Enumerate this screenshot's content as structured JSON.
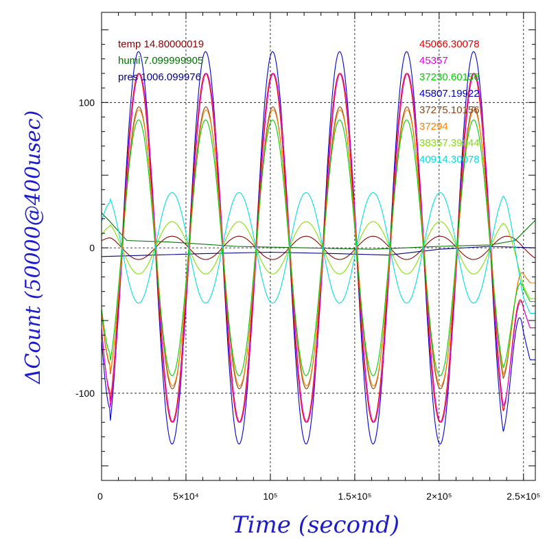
{
  "chart_data": {
    "type": "line",
    "title": "",
    "xlabel": "Time (second)",
    "ylabel": "ΔCount (50000@400usec)",
    "xlim": [
      0,
      257000
    ],
    "ylim": [
      -160,
      162
    ],
    "grid": true,
    "x_ticks": [
      {
        "value": 0,
        "label": "0"
      },
      {
        "value": 50000,
        "label": "5×10⁴"
      },
      {
        "value": 100000,
        "label": "10⁵"
      },
      {
        "value": 150000,
        "label": "1.5×10⁵"
      },
      {
        "value": 200000,
        "label": "2×10⁵"
      },
      {
        "value": 250000,
        "label": "2.5×10⁵"
      }
    ],
    "y_ticks": [
      {
        "value": -100,
        "label": "-100"
      },
      {
        "value": 0,
        "label": "0"
      },
      {
        "value": 100,
        "label": "100"
      }
    ],
    "legend_left": [
      {
        "text": "temp 14.80000019",
        "color": "#8b0000"
      },
      {
        "text": "humi 7.099999905",
        "color": "#007000"
      },
      {
        "text": "pres 1006.099976",
        "color": "#000080"
      }
    ],
    "legend_right": [
      {
        "text": "45066.30078",
        "color": "#e00000"
      },
      {
        "text": "45357",
        "color": "#e000e0"
      },
      {
        "text": "37230.60156",
        "color": "#00cc00"
      },
      {
        "text": "45807.19922",
        "color": "#0000cc"
      },
      {
        "text": "37275.10156",
        "color": "#8b4513"
      },
      {
        "text": "37294",
        "color": "#ff8000"
      },
      {
        "text": "38357.39844",
        "color": "#80e000"
      },
      {
        "text": "40914.30078",
        "color": "#00dddd"
      }
    ],
    "period": 39700,
    "series": [
      {
        "id": "blue",
        "color": "#0000cc",
        "amplitude": 135,
        "phase_x": 12000,
        "offset": 0,
        "x": [
          0,
          257000
        ],
        "tail": {
          "x": [
            238000,
            257000
          ],
          "y": [
            0,
            -77
          ]
        }
      },
      {
        "id": "red",
        "color": "#e00000",
        "amplitude": 120,
        "phase_x": 12000,
        "offset": 0,
        "x": [
          0,
          257000
        ],
        "tail": {
          "x": [
            238000,
            257000
          ],
          "y": [
            0,
            -55
          ]
        }
      },
      {
        "id": "magenta",
        "color": "#e000e0",
        "amplitude": 120,
        "phase_x": 12500,
        "offset": 0,
        "x": [
          0,
          257000
        ],
        "tail": {
          "x": [
            238000,
            257000
          ],
          "y": [
            0,
            -55
          ]
        }
      },
      {
        "id": "brown",
        "color": "#8b4513",
        "amplitude": 97,
        "phase_x": 12200,
        "offset": 0,
        "x": [
          0,
          257000
        ],
        "tail": {
          "x": [
            238000,
            257000
          ],
          "y": [
            0,
            -24
          ]
        }
      },
      {
        "id": "orange",
        "color": "#ff8000",
        "amplitude": 95,
        "phase_x": 12300,
        "offset": 0,
        "x": [
          0,
          257000
        ],
        "tail": {
          "x": [
            238000,
            257000
          ],
          "y": [
            0,
            -24
          ]
        }
      },
      {
        "id": "green",
        "color": "#00cc00",
        "amplitude": 88,
        "phase_x": 12000,
        "offset": 0,
        "x": [
          0,
          257000
        ],
        "tail": {
          "x": [
            238000,
            257000
          ],
          "y": [
            0,
            -37
          ]
        }
      },
      {
        "id": "lightgreen",
        "color": "#80e000",
        "amplitude": -18,
        "phase_x": 12000,
        "offset": 0,
        "x": [
          0,
          257000
        ],
        "tail": {
          "x": [
            238000,
            257000
          ],
          "y": [
            0,
            -35
          ]
        }
      },
      {
        "id": "cyan",
        "color": "#00dddd",
        "amplitude": -38,
        "phase_x": 12000,
        "offset": 0,
        "x": [
          0,
          257000
        ],
        "tail": {
          "x": [
            238000,
            257000
          ],
          "y": [
            0,
            -45
          ]
        }
      }
    ],
    "env_series": [
      {
        "id": "temp",
        "color": "#8b0000",
        "amplitude": -8,
        "phase_x": 12000,
        "offset": 0,
        "x": [
          0,
          257000
        ],
        "start_y": 5
      },
      {
        "id": "humi",
        "color": "#007000",
        "points": [
          [
            0,
            24
          ],
          [
            5000,
            18
          ],
          [
            15000,
            5
          ],
          [
            40000,
            4
          ],
          [
            80000,
            1
          ],
          [
            120000,
            0
          ],
          [
            160000,
            -1
          ],
          [
            200000,
            1
          ],
          [
            230000,
            2
          ],
          [
            245000,
            5
          ],
          [
            257000,
            19
          ]
        ]
      },
      {
        "id": "pres",
        "color": "#000080",
        "points": [
          [
            0,
            -6
          ],
          [
            30000,
            -5
          ],
          [
            60000,
            -4
          ],
          [
            100000,
            -3
          ],
          [
            140000,
            -4
          ],
          [
            170000,
            -5
          ],
          [
            200000,
            -1
          ],
          [
            230000,
            1
          ],
          [
            257000,
            0
          ]
        ]
      }
    ]
  }
}
